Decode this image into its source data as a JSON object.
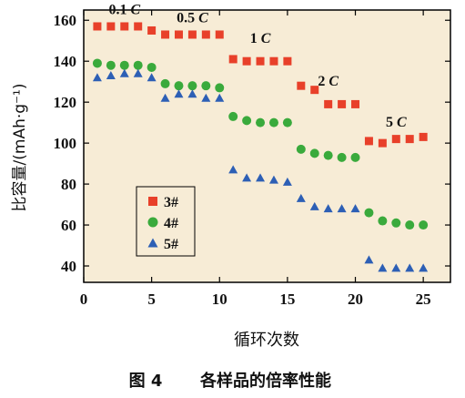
{
  "chart_data": {
    "type": "scatter",
    "xlabel": "循环次数",
    "ylabel": "比容量/(mAh·g⁻¹)",
    "xlim": [
      0,
      27
    ],
    "ylim": [
      32,
      165
    ],
    "x_ticks": [
      0,
      5,
      10,
      15,
      20,
      25
    ],
    "y_ticks": [
      40,
      60,
      80,
      100,
      120,
      140,
      160
    ],
    "grid": false,
    "legend_position": "bottom-left",
    "plot_background": "#f7ecd6",
    "annotations": [
      {
        "text": "0.1 C",
        "x": 3,
        "y": 163
      },
      {
        "text": "0.5 C",
        "x": 8,
        "y": 159
      },
      {
        "text": "1 C",
        "x": 13,
        "y": 149
      },
      {
        "text": "2 C",
        "x": 18,
        "y": 128
      },
      {
        "text": "5 C",
        "x": 23,
        "y": 108
      }
    ],
    "series": [
      {
        "name": "3#",
        "marker": "square",
        "color": "#e8402a",
        "x": [
          1,
          2,
          3,
          4,
          5,
          6,
          7,
          8,
          9,
          10,
          11,
          12,
          13,
          14,
          15,
          16,
          17,
          18,
          19,
          20,
          21,
          22,
          23,
          24,
          25
        ],
        "y": [
          157,
          157,
          157,
          157,
          155,
          153,
          153,
          153,
          153,
          153,
          141,
          140,
          140,
          140,
          140,
          128,
          126,
          119,
          119,
          119,
          101,
          100,
          102,
          102,
          103
        ]
      },
      {
        "name": "4#",
        "marker": "circle",
        "color": "#3aaa3c",
        "x": [
          1,
          2,
          3,
          4,
          5,
          6,
          7,
          8,
          9,
          10,
          11,
          12,
          13,
          14,
          15,
          16,
          17,
          18,
          19,
          20,
          21,
          22,
          23,
          24,
          25
        ],
        "y": [
          139,
          138,
          138,
          138,
          137,
          129,
          128,
          128,
          128,
          127,
          113,
          111,
          110,
          110,
          110,
          97,
          95,
          94,
          93,
          93,
          66,
          62,
          61,
          60,
          60
        ]
      },
      {
        "name": "5#",
        "marker": "triangle",
        "color": "#2d5fb5",
        "x": [
          1,
          2,
          3,
          4,
          5,
          6,
          7,
          8,
          9,
          10,
          11,
          12,
          13,
          14,
          15,
          16,
          17,
          18,
          19,
          20,
          21,
          22,
          23,
          24,
          25
        ],
        "y": [
          132,
          133,
          134,
          134,
          132,
          122,
          124,
          124,
          122,
          122,
          87,
          83,
          83,
          82,
          81,
          73,
          69,
          68,
          68,
          68,
          43,
          39,
          39,
          39,
          39
        ]
      }
    ]
  },
  "caption": {
    "figure_label": "图 4",
    "text": "各样品的倍率性能"
  }
}
